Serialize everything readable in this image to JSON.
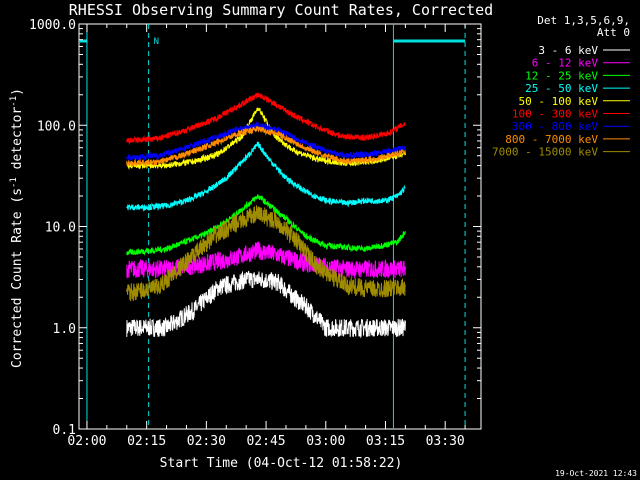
{
  "chart_data": {
    "type": "line",
    "title": "RHESSI Observing Summary Count Rates, Corrected",
    "xlabel": "Start Time (04-Oct-12 01:58:22)",
    "ylabel": "Corrected Count Rate (s",
    "ylabel_sup": "-1",
    "ylabel_mid": " detector",
    "ylabel_end": ")",
    "x_scale": "time",
    "y_scale": "log",
    "xlim": [
      "01:58:00",
      "03:39:00"
    ],
    "ylim": [
      0.1,
      1000
    ],
    "x_ticks": [
      "02:00",
      "02:15",
      "02:30",
      "02:45",
      "03:00",
      "03:15",
      "03:30"
    ],
    "y_ticks": [
      {
        "value": 0.1,
        "label": "0.1"
      },
      {
        "value": 1,
        "label": "1.0"
      },
      {
        "value": 10,
        "label": "10.0"
      },
      {
        "value": 100,
        "label": "100.0"
      },
      {
        "value": 1000,
        "label": "1000.0"
      }
    ],
    "grid": false,
    "legend_position": "outside-right",
    "legend_header": [
      "Det 1,3,5,6,9,",
      "Att 0"
    ],
    "series": [
      {
        "name": "3 - 6 keV",
        "color": "#ffffff",
        "points": [
          [
            "02:10",
            1.0
          ],
          [
            "02:20",
            1.0
          ],
          [
            "02:27",
            1.5
          ],
          [
            "02:33",
            2.5
          ],
          [
            "02:40",
            3.0
          ],
          [
            "02:44",
            3.0
          ],
          [
            "02:48",
            2.8
          ],
          [
            "02:52",
            2.0
          ],
          [
            "02:56",
            1.5
          ],
          [
            "03:00",
            1.0
          ],
          [
            "03:10",
            1.0
          ],
          [
            "03:20",
            1.0
          ]
        ]
      },
      {
        "name": "6 - 12 keV",
        "color": "#ff00ff",
        "points": [
          [
            "02:10",
            3.8
          ],
          [
            "02:20",
            3.8
          ],
          [
            "02:30",
            4.3
          ],
          [
            "02:38",
            5.0
          ],
          [
            "02:43",
            5.8
          ],
          [
            "02:48",
            5.2
          ],
          [
            "02:55",
            4.3
          ],
          [
            "03:05",
            3.8
          ],
          [
            "03:20",
            3.8
          ]
        ]
      },
      {
        "name": "12 - 25 keV",
        "color": "#00ff00",
        "points": [
          [
            "02:10",
            5.5
          ],
          [
            "02:20",
            6.0
          ],
          [
            "02:30",
            8.5
          ],
          [
            "02:36",
            12.0
          ],
          [
            "02:40",
            16.0
          ],
          [
            "02:43",
            20.0
          ],
          [
            "02:46",
            16.0
          ],
          [
            "02:50",
            12.0
          ],
          [
            "02:55",
            8.0
          ],
          [
            "03:00",
            6.5
          ],
          [
            "03:10",
            6.0
          ],
          [
            "03:18",
            7.0
          ],
          [
            "03:20",
            9.0
          ]
        ]
      },
      {
        "name": "25 - 50 keV",
        "color": "#00ffff",
        "points": [
          [
            "02:10",
            15.5
          ],
          [
            "02:15",
            15.5
          ],
          [
            "02:20",
            16.0
          ],
          [
            "02:25",
            18.0
          ],
          [
            "02:30",
            22.0
          ],
          [
            "02:35",
            30.0
          ],
          [
            "02:40",
            48.0
          ],
          [
            "02:43",
            65.0
          ],
          [
            "02:46",
            45.0
          ],
          [
            "02:50",
            30.0
          ],
          [
            "02:55",
            22.0
          ],
          [
            "03:00",
            18.0
          ],
          [
            "03:05",
            17.0
          ],
          [
            "03:10",
            18.0
          ],
          [
            "03:15",
            18.0
          ],
          [
            "03:18",
            20.0
          ],
          [
            "03:20",
            24.0
          ]
        ]
      },
      {
        "name": "50 - 100 keV",
        "color": "#ffff00",
        "points": [
          [
            "02:10",
            40.0
          ],
          [
            "02:20",
            40.0
          ],
          [
            "02:27",
            44.0
          ],
          [
            "02:33",
            52.0
          ],
          [
            "02:39",
            78.0
          ],
          [
            "02:43",
            150.0
          ],
          [
            "02:47",
            80.0
          ],
          [
            "02:52",
            56.0
          ],
          [
            "02:58",
            46.0
          ],
          [
            "03:05",
            42.0
          ],
          [
            "03:12",
            44.0
          ],
          [
            "03:20",
            52.0
          ]
        ]
      },
      {
        "name": "100 - 300 keV",
        "color": "#ff0000",
        "points": [
          [
            "02:10",
            70.0
          ],
          [
            "02:18",
            74.0
          ],
          [
            "02:25",
            90.0
          ],
          [
            "02:32",
            115.0
          ],
          [
            "02:38",
            155.0
          ],
          [
            "02:43",
            200.0
          ],
          [
            "02:47",
            165.0
          ],
          [
            "02:52",
            125.0
          ],
          [
            "02:58",
            95.0
          ],
          [
            "03:04",
            78.0
          ],
          [
            "03:10",
            75.0
          ],
          [
            "03:16",
            84.0
          ],
          [
            "03:20",
            105.0
          ]
        ]
      },
      {
        "name": "300 - 800 keV",
        "color": "#0000ff",
        "points": [
          [
            "02:10",
            48.0
          ],
          [
            "02:18",
            50.0
          ],
          [
            "02:25",
            60.0
          ],
          [
            "02:32",
            75.0
          ],
          [
            "02:38",
            92.0
          ],
          [
            "02:43",
            100.0
          ],
          [
            "02:48",
            90.0
          ],
          [
            "02:53",
            72.0
          ],
          [
            "02:59",
            58.0
          ],
          [
            "03:05",
            50.0
          ],
          [
            "03:12",
            52.0
          ],
          [
            "03:20",
            60.0
          ]
        ]
      },
      {
        "name": "800 - 7000 keV",
        "color": "#ff8c00",
        "points": [
          [
            "02:10",
            42.0
          ],
          [
            "02:18",
            43.0
          ],
          [
            "02:25",
            52.0
          ],
          [
            "02:32",
            66.0
          ],
          [
            "02:38",
            83.0
          ],
          [
            "02:43",
            92.0
          ],
          [
            "02:48",
            82.0
          ],
          [
            "02:53",
            65.0
          ],
          [
            "02:59",
            51.0
          ],
          [
            "03:05",
            44.0
          ],
          [
            "03:12",
            46.0
          ],
          [
            "03:20",
            55.0
          ]
        ]
      },
      {
        "name": "7000 - 15000 keV",
        "color": "#a08c00",
        "points": [
          [
            "02:10",
            2.2
          ],
          [
            "02:18",
            2.5
          ],
          [
            "02:25",
            4.5
          ],
          [
            "02:32",
            8.0
          ],
          [
            "02:38",
            11.0
          ],
          [
            "02:43",
            13.5
          ],
          [
            "02:48",
            11.0
          ],
          [
            "02:53",
            7.0
          ],
          [
            "02:58",
            4.0
          ],
          [
            "03:05",
            2.6
          ],
          [
            "03:12",
            2.4
          ],
          [
            "03:20",
            2.5
          ]
        ]
      }
    ],
    "annotations": {
      "night_marks": [
        {
          "start": "01:58:00",
          "end": "02:00:00"
        },
        {
          "start": "03:17:00",
          "end": "03:35:00"
        }
      ],
      "saa_lines": [
        "02:15:30",
        "03:35:00"
      ],
      "solid_lines": [
        "02:00:00",
        "03:17:00"
      ],
      "saa_label": "N"
    }
  },
  "timestamp": "19-Oct-2021 12:43"
}
